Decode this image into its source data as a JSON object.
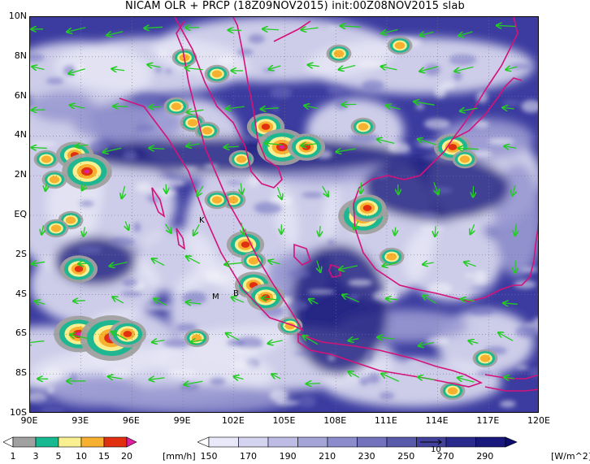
{
  "title": "NICAM OLR + PRCP (18Z09NOV2015) init:00Z08NOV2015 slab",
  "map": {
    "lat_labels": [
      "10N",
      "8N",
      "6N",
      "4N",
      "2N",
      "EQ",
      "2S",
      "4S",
      "6S",
      "8S",
      "10S"
    ],
    "lon_labels": [
      "90E",
      "93E",
      "96E",
      "99E",
      "102E",
      "105E",
      "108E",
      "111E",
      "114E",
      "117E",
      "120E"
    ],
    "lat_range": [
      -10,
      10
    ],
    "lon_range": [
      90,
      120
    ],
    "grid": "dotted",
    "coastline_color": "#d4127a",
    "wind_arrow_color": "#22cc22",
    "place_labels": [
      "K",
      "M",
      "B"
    ]
  },
  "precip_bar": {
    "ticks": [
      "1",
      "3",
      "5",
      "10",
      "15",
      "20"
    ],
    "unit": "[mm/h]",
    "colors": [
      "#ffffff",
      "#a0a0a0",
      "#18b890",
      "#f8f090",
      "#f8b030",
      "#e03010",
      "#e020a0"
    ]
  },
  "olr_bar": {
    "ticks": [
      "150",
      "170",
      "190",
      "210",
      "230",
      "250",
      "270",
      "290"
    ],
    "unit": "[W/m^2]",
    "vector_ref": "10",
    "colors": [
      "#ffffff",
      "#e8e8f8",
      "#d4d4f0",
      "#bcbce4",
      "#a4a4d8",
      "#8c8ccc",
      "#7272bc",
      "#5a5aac",
      "#42429c",
      "#2a2a8c",
      "#18187c",
      "#0c0c6c"
    ]
  }
}
